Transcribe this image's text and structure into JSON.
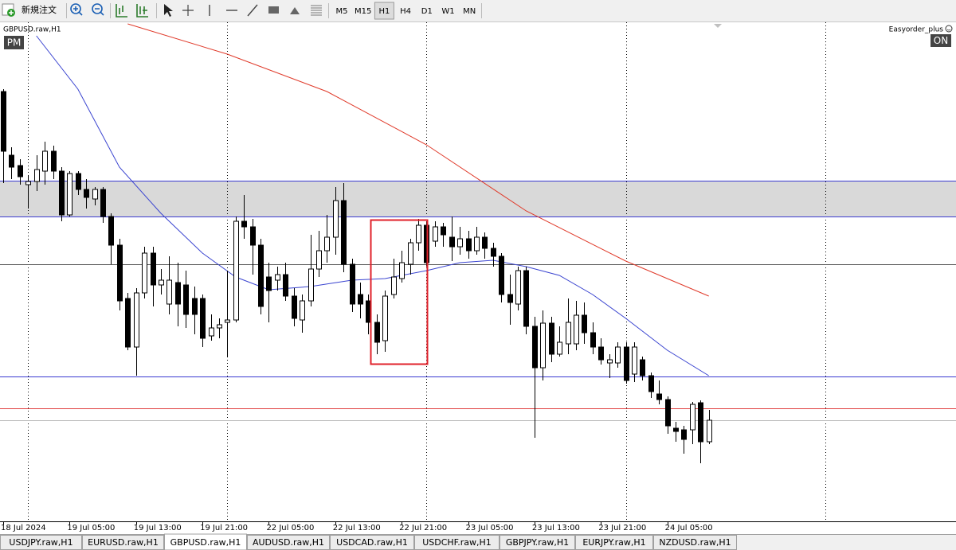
{
  "toolbar": {
    "new_order": "新規注文",
    "timeframes": [
      "M5",
      "M15",
      "H1",
      "H4",
      "D1",
      "W1",
      "MN"
    ],
    "active_timeframe": 2
  },
  "chart_data": {
    "type": "candlestick",
    "title": "GBPUSD.raw,H1",
    "badge_left": "PM",
    "indicator": "Easyorder_plus",
    "badge_right": "ON",
    "ylim": [
      1.286,
      1.2985
    ],
    "categories": [
      "18 Jul 2024",
      null,
      null,
      null,
      null,
      null,
      null,
      null,
      "19 Jul 05:00",
      null,
      null,
      null,
      null,
      null,
      null,
      null,
      "19 Jul 13:00",
      null,
      null,
      null,
      null,
      null,
      null,
      null,
      "19 Jul 21:00",
      null,
      null,
      null,
      null,
      null,
      null,
      null,
      "22 Jul 05:00",
      null,
      null,
      null,
      null,
      null,
      null,
      null,
      "22 Jul 13:00",
      null,
      null,
      null,
      null,
      null,
      null,
      null,
      "22 Jul 21:00",
      null,
      null,
      null,
      null,
      null,
      null,
      null,
      "23 Jul 05:00",
      null,
      null,
      null,
      null,
      null,
      null,
      null,
      "23 Jul 13:00",
      null,
      null,
      null,
      null,
      null,
      null,
      null,
      "23 Jul 21:00",
      null,
      null,
      null,
      null,
      null,
      null,
      null,
      "24 Jul 05:00",
      null,
      null,
      null,
      null,
      null
    ],
    "open": [
      1.2968,
      1.2952,
      1.29494,
      1.29446,
      1.29454,
      1.2948,
      1.2953,
      1.2948,
      1.2937,
      1.29474,
      1.29434,
      1.2941,
      1.29434,
      1.29366,
      1.29294,
      1.2916,
      1.29038,
      1.29174,
      1.29274,
      1.29194,
      1.29146,
      1.292,
      1.29194,
      1.2916,
      1.2916,
      1.29066,
      1.29086,
      1.291,
      1.29106,
      1.29354,
      1.2934,
      1.29294,
      1.29214,
      1.29206,
      1.2922,
      1.29166,
      1.29106,
      1.29154,
      1.29234,
      1.2928,
      1.29314,
      1.29406,
      1.29246,
      1.2917,
      1.29154,
      1.291,
      1.29054,
      1.2917,
      1.2921,
      1.29246,
      1.293,
      1.29344,
      1.29304,
      1.2934,
      1.29314,
      1.2929,
      1.2931,
      1.2928,
      1.29314,
      1.29286,
      1.29266,
      1.2917,
      1.29146,
      1.2923,
      1.2909,
      1.28986,
      1.29098,
      1.2902,
      1.29046,
      1.29046,
      1.29118,
      1.29074,
      1.29038,
      1.28998,
      1.28998,
      1.29038,
      1.2897,
      1.29006,
      1.28966,
      1.2892,
      1.28906,
      1.28834,
      1.2883,
      1.2883,
      1.28898,
      1.288
    ],
    "high": [
      1.29686,
      1.2954,
      1.2951,
      1.2947,
      1.2952,
      1.29554,
      1.29544,
      1.2949,
      1.2948,
      1.2948,
      1.2946,
      1.2944,
      1.2944,
      1.29374,
      1.2931,
      1.29174,
      1.29186,
      1.2929,
      1.2929,
      1.29234,
      1.29266,
      1.2925,
      1.2923,
      1.2919,
      1.2917,
      1.2912,
      1.2911,
      1.2923,
      1.29366,
      1.2942,
      1.2936,
      1.2931,
      1.2925,
      1.2924,
      1.2925,
      1.29186,
      1.2917,
      1.2932,
      1.2933,
      1.2937,
      1.2944,
      1.2945,
      1.2926,
      1.292,
      1.2917,
      1.2912,
      1.2918,
      1.2926,
      1.2928,
      1.2931,
      1.2936,
      1.29354,
      1.29354,
      1.2935,
      1.29366,
      1.2934,
      1.2933,
      1.2934,
      1.29326,
      1.293,
      1.29274,
      1.2922,
      1.2924,
      1.2924,
      1.29114,
      1.2913,
      1.29114,
      1.2909,
      1.2916,
      1.29154,
      1.2915,
      1.291,
      1.2906,
      1.2902,
      1.2905,
      1.2905,
      1.2905,
      1.29014,
      1.28974,
      1.28954,
      1.28914,
      1.2885,
      1.2884,
      1.289,
      1.28904,
      1.2888
    ],
    "low": [
      1.2945,
      1.2946,
      1.29446,
      1.29386,
      1.2943,
      1.29446,
      1.2946,
      1.29354,
      1.29366,
      1.2942,
      1.29386,
      1.29394,
      1.2935,
      1.29246,
      1.2913,
      1.2903,
      1.28966,
      1.2916,
      1.2914,
      1.2917,
      1.2912,
      1.2909,
      1.29086,
      1.2907,
      1.29038,
      1.29054,
      1.2906,
      1.29014,
      1.291,
      1.2931,
      1.2922,
      1.2912,
      1.291,
      1.2918,
      1.29154,
      1.2909,
      1.29074,
      1.2914,
      1.29214,
      1.2925,
      1.2927,
      1.29226,
      1.29126,
      1.2911,
      1.2907,
      1.2902,
      1.29026,
      1.2916,
      1.292,
      1.2922,
      1.2928,
      1.2924,
      1.2929,
      1.2929,
      1.29254,
      1.2927,
      1.2926,
      1.2927,
      1.2926,
      1.2924,
      1.2915,
      1.29094,
      1.2913,
      1.2907,
      1.2881,
      1.28954,
      1.29,
      1.29014,
      1.2902,
      1.2903,
      1.29046,
      1.2902,
      1.28994,
      1.2896,
      1.28986,
      1.28946,
      1.2895,
      1.28954,
      1.2891,
      1.28894,
      1.2882,
      1.288,
      1.2877,
      1.28794,
      1.28746,
      1.28794
    ],
    "close": [
      1.2953,
      1.2949,
      1.29466,
      1.29454,
      1.29484,
      1.2953,
      1.2948,
      1.2937,
      1.29474,
      1.29434,
      1.29414,
      1.29434,
      1.29366,
      1.29294,
      1.29154,
      1.29038,
      1.29174,
      1.29274,
      1.29194,
      1.29206,
      1.29206,
      1.29146,
      1.2912,
      1.2912,
      1.2906,
      1.29086,
      1.29094,
      1.29106,
      1.29354,
      1.2934,
      1.29294,
      1.2914,
      1.2918,
      1.2922,
      1.29166,
      1.2911,
      1.29154,
      1.29234,
      1.2928,
      1.29314,
      1.29406,
      1.29246,
      1.29146,
      1.29146,
      1.291,
      1.2905,
      1.29166,
      1.29214,
      1.2925,
      1.293,
      1.29344,
      1.2925,
      1.2934,
      1.2932,
      1.2929,
      1.2931,
      1.2928,
      1.29314,
      1.29286,
      1.29266,
      1.2917,
      1.2915,
      1.2923,
      1.2909,
      1.28986,
      1.29098,
      1.2902,
      1.2905,
      1.291,
      1.29118,
      1.29074,
      1.29038,
      1.29006,
      1.29006,
      1.29038,
      1.28954,
      1.29038,
      1.28966,
      1.28926,
      1.28906,
      1.2884,
      1.28826,
      1.28806,
      1.28894,
      1.288,
      1.28854
    ],
    "up_color": "#ffffff",
    "down_color": "#000000",
    "zone": {
      "from": 1.29366,
      "to": 1.29456,
      "color": "#d9d9d9"
    },
    "levels": [
      {
        "value": 1.29456,
        "color": "#3a3ad0"
      },
      {
        "value": 1.29366,
        "color": "#3a3ad0"
      },
      {
        "value": 1.29246,
        "color": "#555555"
      },
      {
        "value": 1.28964,
        "color": "#3a3ad0"
      },
      {
        "value": 1.28884,
        "color": "#e04040"
      },
      {
        "value": 1.28854,
        "color": "#b8b8b8"
      }
    ],
    "ma": [
      {
        "color": "#e03a2a",
        "x": [
          15,
          27,
          39,
          51,
          63,
          75,
          85
        ],
        "values": [
          1.2985,
          1.29774,
          1.2968,
          1.29546,
          1.2938,
          1.29254,
          1.29166
        ]
      },
      {
        "color": "#3a44d0",
        "x": [
          4,
          9,
          14,
          19,
          24,
          28,
          32,
          37,
          42,
          46,
          51,
          55,
          59,
          63,
          67,
          71,
          75,
          80,
          85
        ],
        "values": [
          1.2982,
          1.29686,
          1.2949,
          1.29374,
          1.29274,
          1.29214,
          1.29182,
          1.2919,
          1.29206,
          1.2921,
          1.2923,
          1.2925,
          1.29256,
          1.2924,
          1.29218,
          1.2917,
          1.2911,
          1.2903,
          1.28966
        ]
      }
    ]
  },
  "tabs": [
    "USDJPY.raw,H1",
    "EURUSD.raw,H1",
    "GBPUSD.raw,H1",
    "AUDUSD.raw,H1",
    "USDCAD.raw,H1",
    "USDCHF.raw,H1",
    "GBPJPY.raw,H1",
    "EURJPY.raw,H1",
    "NZDUSD.raw,H1"
  ],
  "active_tab": 2
}
